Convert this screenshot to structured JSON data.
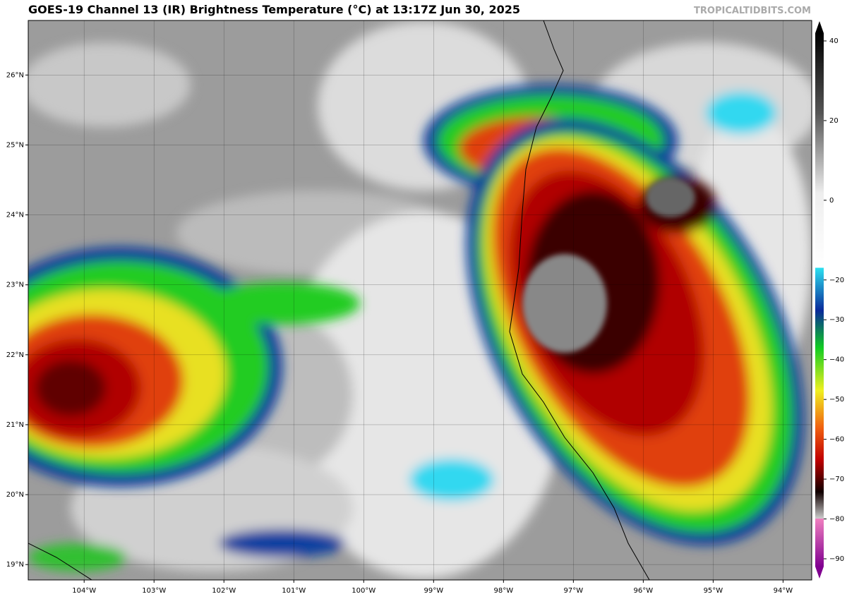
{
  "header": {
    "title": "GOES-19 Channel 13 (IR) Brightness Temperature (°C) at 13:17Z Jun 30, 2025",
    "watermark": "TROPICALTIDBITS.COM"
  },
  "map": {
    "lat_lim": [
      18.78,
      26.78
    ],
    "lon_lim": [
      -104.8,
      -93.59
    ],
    "lat_labels": [
      {
        "value": 26,
        "label": "26°N"
      },
      {
        "value": 25,
        "label": "25°N"
      },
      {
        "value": 24,
        "label": "24°N"
      },
      {
        "value": 23,
        "label": "23°N"
      },
      {
        "value": 22,
        "label": "22°N"
      },
      {
        "value": 21,
        "label": "21°N"
      },
      {
        "value": 20,
        "label": "20°N"
      },
      {
        "value": 19,
        "label": "19°N"
      }
    ],
    "lon_labels": [
      {
        "value": -104,
        "label": "104°W"
      },
      {
        "value": -103,
        "label": "103°W"
      },
      {
        "value": -102,
        "label": "102°W"
      },
      {
        "value": -101,
        "label": "101°W"
      },
      {
        "value": -100,
        "label": "100°W"
      },
      {
        "value": -99,
        "label": "99°W"
      },
      {
        "value": -98,
        "label": "98°W"
      },
      {
        "value": -97,
        "label": "97°W"
      },
      {
        "value": -96,
        "label": "96°W"
      },
      {
        "value": -95,
        "label": "95°W"
      },
      {
        "value": -94,
        "label": "94°W"
      }
    ]
  },
  "colorbar": {
    "ticks": [
      {
        "value": 40,
        "label": "40"
      },
      {
        "value": 20,
        "label": "20"
      },
      {
        "value": 0,
        "label": "0"
      },
      {
        "value": -20,
        "label": "−20"
      },
      {
        "value": -30,
        "label": "−30"
      },
      {
        "value": -40,
        "label": "−40"
      },
      {
        "value": -50,
        "label": "−50"
      },
      {
        "value": -60,
        "label": "−60"
      },
      {
        "value": -70,
        "label": "−70"
      },
      {
        "value": -80,
        "label": "−80"
      },
      {
        "value": -90,
        "label": "−90"
      }
    ]
  }
}
